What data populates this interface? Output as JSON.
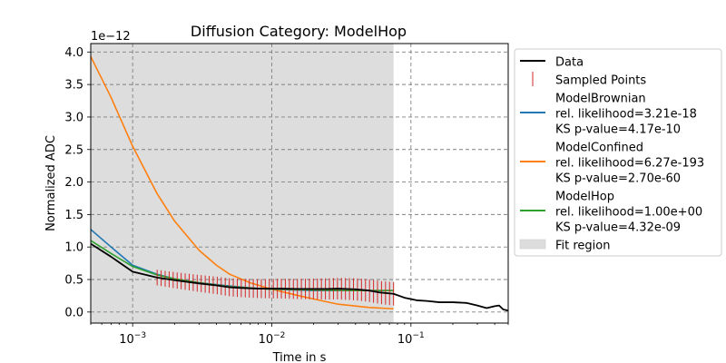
{
  "chart_data": {
    "type": "line",
    "title": "Diffusion Category: ModelHop",
    "xlabel": "Time in s",
    "ylabel": "Normalized ADC",
    "x_scale": "log",
    "xlim": [
      0.0005,
      0.5
    ],
    "ylim": [
      -0.17,
      4.13
    ],
    "y_multiplier": "1e−12",
    "x_ticks": [
      {
        "value": 0.001,
        "base": "10",
        "exp": "−3"
      },
      {
        "value": 0.01,
        "base": "10",
        "exp": "−2"
      },
      {
        "value": 0.1,
        "base": "10",
        "exp": "−1"
      }
    ],
    "y_ticks": [
      0.0,
      0.5,
      1.0,
      1.5,
      2.0,
      2.5,
      3.0,
      3.5,
      4.0
    ],
    "y_tick_labels": [
      "0.0",
      "0.5",
      "1.0",
      "1.5",
      "2.0",
      "2.5",
      "3.0",
      "3.5",
      "4.0"
    ],
    "grid": true,
    "legend_position": "outside-right",
    "fit_region": {
      "x_start": 0.0005,
      "x_end": 0.075,
      "label": "Fit region",
      "color": "#dddddd"
    },
    "series": [
      {
        "name": "Data",
        "color": "#000000",
        "style": "line",
        "x": [
          0.0005,
          0.0007,
          0.001,
          0.0015,
          0.002,
          0.003,
          0.004,
          0.005,
          0.006,
          0.008,
          0.01,
          0.012,
          0.015,
          0.02,
          0.025,
          0.03,
          0.04,
          0.05,
          0.06,
          0.075,
          0.09,
          0.11,
          0.13,
          0.16,
          0.2,
          0.25,
          0.3,
          0.35,
          0.4,
          0.43,
          0.46,
          0.48,
          0.5
        ],
        "y": [
          1.05,
          0.85,
          0.62,
          0.53,
          0.49,
          0.44,
          0.41,
          0.38,
          0.37,
          0.36,
          0.36,
          0.36,
          0.355,
          0.355,
          0.355,
          0.36,
          0.35,
          0.33,
          0.3,
          0.28,
          0.22,
          0.18,
          0.17,
          0.15,
          0.15,
          0.14,
          0.1,
          0.06,
          0.09,
          0.1,
          0.04,
          0.03,
          0.02
        ]
      },
      {
        "name": "Sampled Points",
        "color": "#d62728",
        "style": "errorbars",
        "x_start": 0.0015,
        "x_end": 0.075,
        "count": 60
      },
      {
        "name": "ModelBrownian",
        "stats": [
          "rel. likelihood=3.21e-18",
          "KS p-value=4.17e-10"
        ],
        "color": "#1f77b4",
        "style": "line",
        "x": [
          0.0005,
          0.0007,
          0.001,
          0.0015,
          0.002,
          0.003,
          0.005,
          0.007,
          0.01,
          0.02,
          0.04,
          0.075
        ],
        "y": [
          1.27,
          1.0,
          0.72,
          0.58,
          0.51,
          0.45,
          0.4,
          0.37,
          0.35,
          0.33,
          0.33,
          0.33
        ]
      },
      {
        "name": "ModelConfined",
        "stats": [
          "rel. likelihood=6.27e-193",
          "KS p-value=2.70e-60"
        ],
        "color": "#ff7f0e",
        "style": "line",
        "x": [
          0.0005,
          0.0007,
          0.001,
          0.0015,
          0.002,
          0.003,
          0.004,
          0.005,
          0.007,
          0.01,
          0.015,
          0.02,
          0.03,
          0.05,
          0.075
        ],
        "y": [
          3.93,
          3.3,
          2.55,
          1.82,
          1.4,
          0.95,
          0.72,
          0.58,
          0.45,
          0.35,
          0.26,
          0.2,
          0.12,
          0.07,
          0.05
        ]
      },
      {
        "name": "ModelHop",
        "stats": [
          "rel. likelihood=1.00e+00",
          "KS p-value=4.32e-09"
        ],
        "color": "#2ca02c",
        "style": "line",
        "x": [
          0.0005,
          0.0007,
          0.001,
          0.0015,
          0.002,
          0.003,
          0.005,
          0.007,
          0.01,
          0.02,
          0.04,
          0.075
        ],
        "y": [
          1.1,
          0.9,
          0.7,
          0.57,
          0.51,
          0.45,
          0.39,
          0.37,
          0.35,
          0.34,
          0.33,
          0.33
        ]
      }
    ]
  }
}
